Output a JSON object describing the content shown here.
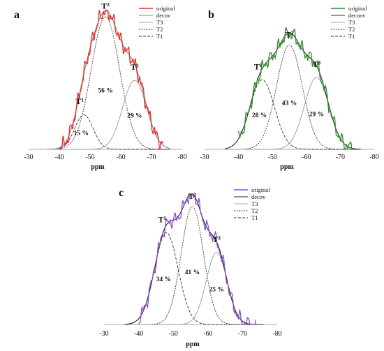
{
  "chart_data": [
    {
      "type": "line",
      "panel_label": "a",
      "xlabel": "ppm",
      "xlim": [
        -30,
        -80
      ],
      "x_ticks": [
        "-30",
        "-40",
        "-50",
        "-60",
        "-70",
        "-80"
      ],
      "series": [
        {
          "name": "original",
          "color": "#e0302a"
        },
        {
          "name": "decov",
          "color": "#888888"
        },
        {
          "name": "T3",
          "color": "#aaaaaa"
        },
        {
          "name": "T2",
          "color": "#333333"
        },
        {
          "name": "T1",
          "color": "#333333"
        }
      ],
      "peaks": [
        {
          "label": "T¹",
          "center": -48,
          "percent": "15 %",
          "height": 0.26,
          "width": 3.0
        },
        {
          "label": "T²",
          "center": -55,
          "percent": "56 %",
          "height": 1.0,
          "width": 4.6
        },
        {
          "label": "T³",
          "center": -64.5,
          "percent": "29 %",
          "height": 0.52,
          "width": 3.9
        }
      ]
    },
    {
      "type": "line",
      "panel_label": "b",
      "xlabel": "ppm",
      "xlim": [
        -30,
        -80
      ],
      "x_ticks": [
        "-30",
        "-40",
        "-50",
        "-60",
        "-70",
        "-80"
      ],
      "series": [
        {
          "name": "original",
          "color": "#2e8b2e"
        },
        {
          "name": "deconv",
          "color": "#333333"
        },
        {
          "name": "T3",
          "color": "#aaaaaa"
        },
        {
          "name": "T2",
          "color": "#333333"
        },
        {
          "name": "T1",
          "color": "#333333"
        }
      ],
      "peaks": [
        {
          "label": "T¹",
          "center": -47,
          "percent": "28 %",
          "height": 0.56,
          "width": 3.6
        },
        {
          "label": "T²",
          "center": -55,
          "percent": "43 %",
          "height": 0.84,
          "width": 3.8
        },
        {
          "label": "T³",
          "center": -63,
          "percent": "29 %",
          "height": 0.58,
          "width": 3.6
        }
      ]
    },
    {
      "type": "line",
      "panel_label": "c",
      "xlabel": "ppm",
      "xlim": [
        -30,
        -80
      ],
      "x_ticks": [
        "-30",
        "-40",
        "-50",
        "-60",
        "-70",
        "-80"
      ],
      "series": [
        {
          "name": "original",
          "color": "#8a4fc7"
        },
        {
          "name": "decov",
          "color": "#222222"
        },
        {
          "name": "T3",
          "color": "#aaaaaa"
        },
        {
          "name": "T2",
          "color": "#333333"
        },
        {
          "name": "T1",
          "color": "#333333"
        }
      ],
      "peaks": [
        {
          "label": "T¹",
          "center": -48,
          "percent": "34 %",
          "height": 0.74,
          "width": 3.4
        },
        {
          "label": "T²",
          "center": -55.5,
          "percent": "41 %",
          "height": 0.95,
          "width": 3.2
        },
        {
          "label": "T³",
          "center": -62.5,
          "percent": "25 %",
          "height": 0.58,
          "width": 3.0
        }
      ]
    }
  ]
}
